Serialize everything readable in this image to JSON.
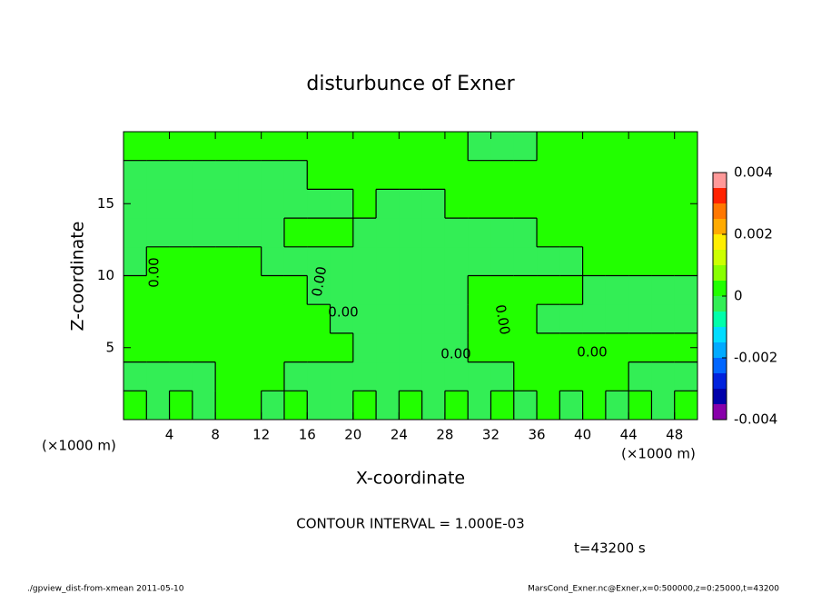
{
  "chart_data": {
    "type": "contour",
    "title": "disturbunce of Exner",
    "xlabel": "X-coordinate",
    "ylabel": "Z-coordinate",
    "x_unit": "(×1000 m)",
    "xlim": [
      0,
      50
    ],
    "ylim": [
      0,
      20
    ],
    "xticks": [
      4,
      8,
      12,
      16,
      20,
      24,
      28,
      32,
      36,
      40,
      44,
      48
    ],
    "yticks": [
      5,
      10,
      15
    ],
    "x": [
      1,
      3,
      5,
      7,
      9,
      11,
      13,
      15,
      17,
      19,
      21,
      23,
      25,
      27,
      29,
      31,
      33,
      35,
      37,
      39,
      41,
      43,
      45,
      47,
      49
    ],
    "y": [
      1,
      3,
      5,
      7,
      9,
      11,
      13,
      15,
      17,
      19
    ],
    "values": [
      [
        0.0002,
        -0.0002,
        0.0002,
        -0.0002,
        0.0002,
        0.0002,
        -0.0002,
        0.0002,
        -0.0002,
        -0.0002,
        0.0002,
        -0.0002,
        0.0002,
        -0.0002,
        0.0002,
        -0.0002,
        0.0002,
        -0.0002,
        0.0002,
        -0.0002,
        0.0002,
        -0.0002,
        0.0002,
        -0.0002,
        0.0002
      ],
      [
        -0.0002,
        -0.0002,
        -0.0002,
        -0.0002,
        0.0002,
        0.0002,
        0.0002,
        -0.0002,
        -0.0002,
        -0.0002,
        -0.0002,
        -0.0002,
        -0.0002,
        -0.0002,
        -0.0002,
        -0.0002,
        -0.0002,
        0.0002,
        0.0002,
        0.0002,
        0.0002,
        0.0002,
        -0.0002,
        -0.0002,
        -0.0002
      ],
      [
        0.0002,
        0.0002,
        0.0002,
        0.0002,
        0.0002,
        0.0002,
        0.0002,
        0.0002,
        0.0002,
        0.0002,
        -0.0002,
        -0.0002,
        -0.0002,
        -0.0002,
        -0.0002,
        0.0002,
        0.0002,
        0.0002,
        0.0002,
        0.0002,
        0.0002,
        0.0002,
        0.0002,
        0.0002,
        0.0002
      ],
      [
        0.0002,
        0.0002,
        0.0002,
        0.0002,
        0.0002,
        0.0002,
        0.0002,
        0.0002,
        0.0002,
        -0.0002,
        -0.0002,
        -0.0002,
        -0.0002,
        -0.0002,
        -0.0002,
        0.0002,
        0.0002,
        0.0002,
        -0.0002,
        -0.0002,
        -0.0002,
        -0.0002,
        -0.0002,
        -0.0002,
        -0.0002
      ],
      [
        0.0002,
        0.0002,
        0.0002,
        0.0002,
        0.0002,
        0.0002,
        0.0002,
        0.0002,
        -0.0002,
        -0.0002,
        -0.0002,
        -0.0002,
        -0.0002,
        -0.0002,
        -0.0002,
        0.0002,
        0.0002,
        0.0002,
        0.0002,
        0.0002,
        -0.0002,
        -0.0002,
        -0.0002,
        -0.0002,
        -0.0002
      ],
      [
        -0.0002,
        0.0002,
        0.0002,
        0.0002,
        0.0002,
        0.0002,
        -0.0002,
        -0.0002,
        -0.0002,
        -0.0002,
        -0.0002,
        -0.0002,
        -0.0002,
        -0.0002,
        -0.0002,
        -0.0002,
        -0.0002,
        -0.0002,
        -0.0002,
        -0.0002,
        0.0002,
        0.0002,
        0.0002,
        0.0002,
        0.0002
      ],
      [
        -0.0002,
        -0.0002,
        -0.0002,
        -0.0002,
        -0.0002,
        -0.0002,
        -0.0002,
        0.0002,
        0.0002,
        0.0002,
        -0.0002,
        -0.0002,
        -0.0002,
        -0.0002,
        -0.0002,
        -0.0002,
        -0.0002,
        -0.0002,
        0.0002,
        0.0002,
        0.0002,
        0.0002,
        0.0002,
        0.0002,
        0.0002
      ],
      [
        -0.0002,
        -0.0002,
        -0.0002,
        -0.0002,
        -0.0002,
        -0.0002,
        -0.0002,
        -0.0002,
        -0.0002,
        -0.0002,
        0.0002,
        -0.0002,
        -0.0002,
        -0.0002,
        0.0002,
        0.0002,
        0.0002,
        0.0002,
        0.0002,
        0.0002,
        0.0002,
        0.0002,
        0.0002,
        0.0002,
        0.0002
      ],
      [
        -0.0002,
        -0.0002,
        -0.0002,
        -0.0002,
        -0.0002,
        -0.0002,
        -0.0002,
        -0.0002,
        0.0002,
        0.0002,
        0.0002,
        0.0002,
        0.0002,
        0.0002,
        0.0002,
        0.0002,
        0.0002,
        0.0002,
        0.0002,
        0.0002,
        0.0002,
        0.0002,
        0.0002,
        0.0002,
        0.0002
      ],
      [
        0.0002,
        0.0002,
        0.0002,
        0.0002,
        0.0002,
        0.0002,
        0.0002,
        0.0002,
        0.0002,
        0.0002,
        0.0002,
        0.0002,
        0.0002,
        0.0002,
        0.0002,
        -0.0002,
        -0.0002,
        -0.0002,
        0.0002,
        0.0002,
        0.0002,
        0.0002,
        0.0002,
        0.0002,
        0.0002
      ]
    ],
    "contour_labels": [
      "0.00",
      "0.00",
      "0.00",
      "0.00",
      "0.00",
      "0.00"
    ],
    "levels": [
      -0.004,
      -0.0035,
      -0.003,
      -0.0025,
      -0.002,
      -0.0015,
      -0.001,
      -0.0005,
      0,
      0.0005,
      0.001,
      0.0015,
      0.002,
      0.0025,
      0.003,
      0.0035,
      0.004
    ],
    "colors": [
      "#8800aa",
      "#0000aa",
      "#0022dd",
      "#0066ff",
      "#00aaff",
      "#00ddff",
      "#00ffaa",
      "#33ee55",
      "#22ff00",
      "#88ff00",
      "#ccff00",
      "#ffee00",
      "#ffaa00",
      "#ff7700",
      "#ff2200",
      "#ff9999"
    ],
    "colorbar_ticks": [
      -0.004,
      -0.002,
      0,
      0.002,
      0.004
    ],
    "contour_interval": "CONTOUR INTERVAL = 1.000E-03",
    "time": "t=43200 s",
    "footer_left": "./gpview_dist-from-xmean  2011-05-10",
    "footer_right": "MarsCond_Exner.nc@Exner,x=0:500000,z=0:25000,t=43200"
  }
}
